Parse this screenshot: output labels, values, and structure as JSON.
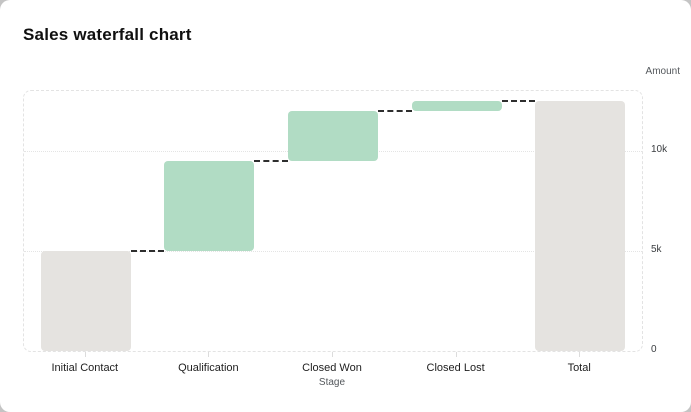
{
  "page": {
    "title": "Sales waterfall chart"
  },
  "chart_data": {
    "type": "bar",
    "variant": "waterfall",
    "title": "Sales waterfall chart",
    "xlabel": "Stage",
    "ylabel": "Amount",
    "categories": [
      "Initial Contact",
      "Qualification",
      "Closed Won",
      "Closed Lost",
      "Total"
    ],
    "bars": [
      {
        "label": "Initial Contact",
        "start": 0,
        "end": 5000,
        "delta": 5000,
        "role": "start"
      },
      {
        "label": "Qualification",
        "start": 5000,
        "end": 9500,
        "delta": 4500,
        "role": "increase"
      },
      {
        "label": "Closed Won",
        "start": 9500,
        "end": 12000,
        "delta": 2500,
        "role": "increase"
      },
      {
        "label": "Closed Lost",
        "start": 12000,
        "end": 12500,
        "delta": 500,
        "role": "increase"
      },
      {
        "label": "Total",
        "start": 0,
        "end": 12500,
        "delta": 12500,
        "role": "total"
      }
    ],
    "yticks": [
      {
        "value": 0,
        "label": "0"
      },
      {
        "value": 5000,
        "label": "5k"
      },
      {
        "value": 10000,
        "label": "10k"
      }
    ],
    "ylim": [
      0,
      13000
    ],
    "grid": true,
    "legend": null,
    "colors": {
      "stage_fill": "#b1dcc4",
      "neutral_fill": "#e5e3e0",
      "connector": "#2e2e2e",
      "grid": "#e4e4e4",
      "title_text": "#101010",
      "axis_text": "#54585c",
      "tick_text": "#3a3d40"
    }
  }
}
